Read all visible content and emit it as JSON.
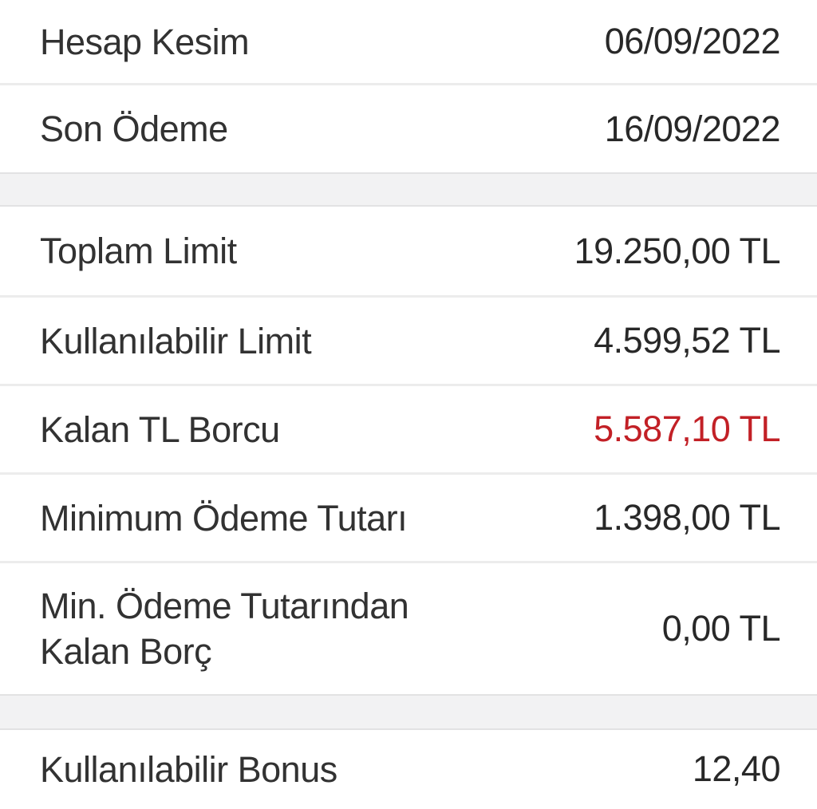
{
  "colors": {
    "text": "#2d2d2d",
    "debt_red": "#c22026",
    "separator": "#ececec",
    "section_band": "#f2f2f3",
    "background": "#ffffff"
  },
  "statement_dates": {
    "rows": [
      {
        "label": "Hesap Kesim",
        "value": "06/09/2022"
      },
      {
        "label": "Son Ödeme",
        "value": "16/09/2022"
      }
    ]
  },
  "limits": {
    "rows": [
      {
        "label": "Toplam Limit",
        "value": "19.250,00 TL"
      },
      {
        "label": "Kullanılabilir Limit",
        "value": "4.599,52 TL"
      },
      {
        "label": "Kalan TL Borcu",
        "value": "5.587,10 TL",
        "highlight": true
      },
      {
        "label": "Minimum Ödeme Tutarı",
        "value": "1.398,00 TL"
      },
      {
        "label": "Min. Ödeme Tutarından Kalan Borç",
        "value": "0,00 TL"
      }
    ]
  },
  "bonus": {
    "rows": [
      {
        "label": "Kullanılabilir Bonus",
        "value": "12,40"
      }
    ]
  }
}
